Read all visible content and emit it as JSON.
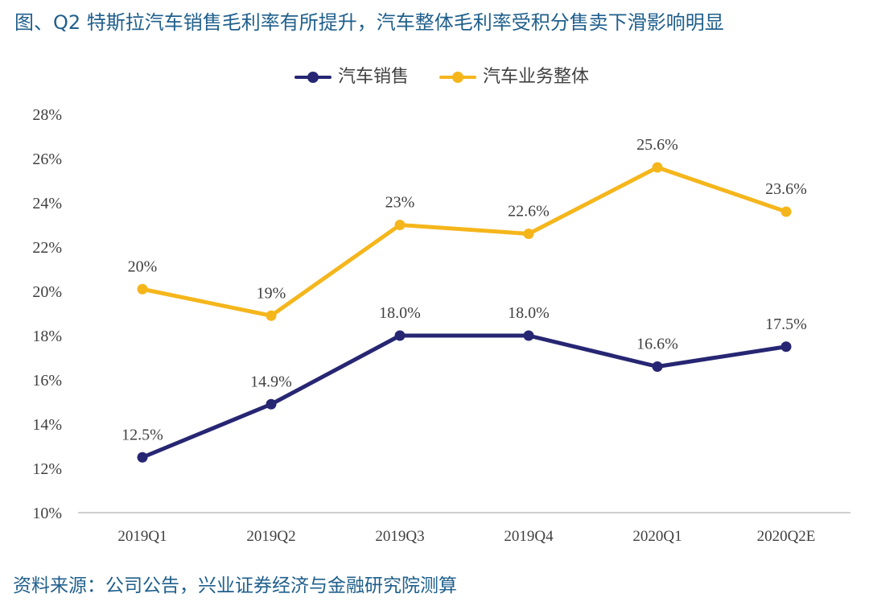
{
  "title": "图、Q2 特斯拉汽车销售毛利率有所提升，汽车整体毛利率受积分售卖下滑影响明显",
  "source": "资料来源：公司公告，兴业证券经济与金融研究院测算",
  "chart_data": {
    "type": "line",
    "categories": [
      "2019Q1",
      "2019Q2",
      "2019Q3",
      "2019Q4",
      "2020Q1",
      "2020Q2E"
    ],
    "ylim": [
      10,
      28
    ],
    "yticks": [
      10,
      12,
      14,
      16,
      18,
      20,
      22,
      24,
      26,
      28
    ],
    "ytick_labels": [
      "10%",
      "12%",
      "14%",
      "16%",
      "18%",
      "20%",
      "22%",
      "24%",
      "26%",
      "28%"
    ],
    "legend_position": "top-center",
    "grid": false,
    "series": [
      {
        "name": "汽车销售",
        "color": "#262673",
        "values": [
          12.5,
          14.9,
          18.0,
          18.0,
          16.6,
          17.5
        ],
        "labels": [
          "12.5%",
          "14.9%",
          "18.0%",
          "18.0%",
          "16.6%",
          "17.5%"
        ]
      },
      {
        "name": "汽车业务整体",
        "color": "#f5b61c",
        "values": [
          20.1,
          18.9,
          23.0,
          22.6,
          25.6,
          23.6
        ],
        "labels": [
          "20%",
          "19%",
          "23%",
          "22.6%",
          "25.6%",
          "23.6%"
        ]
      }
    ]
  }
}
